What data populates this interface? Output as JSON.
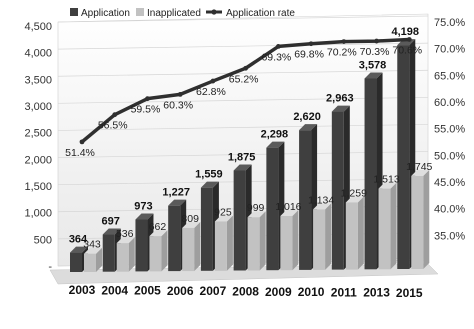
{
  "chart_data": {
    "type": "bar",
    "categories": [
      "2003",
      "2004",
      "2005",
      "2006",
      "2007",
      "2008",
      "2009",
      "2010",
      "2011",
      "2013",
      "2015"
    ],
    "series": [
      {
        "name": "Application",
        "values": [
          364,
          697,
          973,
          1227,
          1559,
          1875,
          2298,
          2620,
          2963,
          3578,
          4198
        ],
        "color": "#3a3a3a"
      },
      {
        "name": "Inapplicated",
        "values": [
          343,
          536,
          662,
          809,
          925,
          999,
          1016,
          1134,
          1259,
          1513,
          1745
        ],
        "color": "#bdbdbd"
      }
    ],
    "line_series": {
      "name": "Application rate",
      "values": [
        51.4,
        56.5,
        59.5,
        60.3,
        62.8,
        65.2,
        69.3,
        69.8,
        70.2,
        70.3,
        70.6
      ],
      "labels": [
        "51.4%",
        "56.5%",
        "59.5%",
        "60.3%",
        "62.8%",
        "65.2%",
        "69.3%",
        "69.8%",
        "70.2%",
        "70.3%",
        "70.6%"
      ],
      "color": "#3a3a3a"
    },
    "left_axis": {
      "ylim": [
        0,
        4500
      ],
      "ticks": [
        "-",
        "500",
        "1,000",
        "1,500",
        "2,000",
        "2,500",
        "3,000",
        "3,500",
        "4,000",
        "4,500"
      ]
    },
    "right_axis": {
      "ylim": [
        30,
        75
      ],
      "ticks": [
        "35.0%",
        "40.0%",
        "45.0%",
        "50.0%",
        "55.0%",
        "60.0%",
        "65.0%",
        "70.0%",
        "75.0%"
      ]
    },
    "legend_position": "top",
    "grid": true,
    "style": "3d"
  }
}
